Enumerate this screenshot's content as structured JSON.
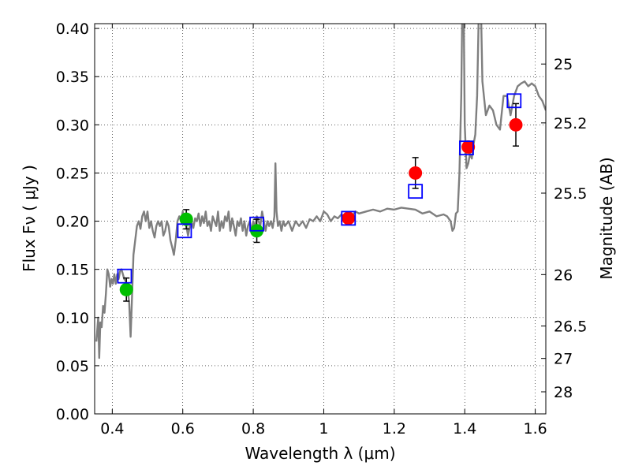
{
  "chart_data": {
    "type": "scatter",
    "xlabel": "Wavelength  λ (μm)",
    "ylabel": "Flux  Fν  ( μJy )",
    "y2label": "Magnitude (AB)",
    "xlim": [
      0.35,
      1.63
    ],
    "ylim": [
      0.0,
      0.405
    ],
    "grid": "on (dotted)",
    "x_ticks": [
      {
        "value": 0.4,
        "label": "0.4"
      },
      {
        "value": 0.6,
        "label": "0.6"
      },
      {
        "value": 0.8,
        "label": "0.8"
      },
      {
        "value": 1.0,
        "label": "1"
      },
      {
        "value": 1.2,
        "label": "1.2"
      },
      {
        "value": 1.4,
        "label": "1.4"
      },
      {
        "value": 1.6,
        "label": "1.6"
      }
    ],
    "y_ticks": [
      {
        "value": 0.0,
        "label": "0.00"
      },
      {
        "value": 0.05,
        "label": "0.05"
      },
      {
        "value": 0.1,
        "label": "0.10"
      },
      {
        "value": 0.15,
        "label": "0.15"
      },
      {
        "value": 0.2,
        "label": "0.20"
      },
      {
        "value": 0.25,
        "label": "0.25"
      },
      {
        "value": 0.3,
        "label": "0.30"
      },
      {
        "value": 0.35,
        "label": "0.35"
      },
      {
        "value": 0.4,
        "label": "0.40"
      }
    ],
    "y2_ticks": [
      {
        "value": 25,
        "label": "25"
      },
      {
        "value": 25.2,
        "label": "25.2"
      },
      {
        "value": 25.5,
        "label": "25.5"
      },
      {
        "value": 26,
        "label": "26"
      },
      {
        "value": 26.5,
        "label": "26.5"
      },
      {
        "value": 27,
        "label": "27"
      },
      {
        "value": 28,
        "label": "28"
      }
    ],
    "series": [
      {
        "kind": "model-spectrum",
        "color": "#7f7f7f",
        "points": [
          [
            0.355,
            0.075
          ],
          [
            0.36,
            0.1
          ],
          [
            0.363,
            0.058
          ],
          [
            0.366,
            0.095
          ],
          [
            0.37,
            0.09
          ],
          [
            0.374,
            0.112
          ],
          [
            0.378,
            0.105
          ],
          [
            0.382,
            0.125
          ],
          [
            0.386,
            0.15
          ],
          [
            0.39,
            0.145
          ],
          [
            0.394,
            0.132
          ],
          [
            0.398,
            0.14
          ],
          [
            0.402,
            0.135
          ],
          [
            0.406,
            0.145
          ],
          [
            0.41,
            0.135
          ],
          [
            0.414,
            0.145
          ],
          [
            0.418,
            0.14
          ],
          [
            0.422,
            0.148
          ],
          [
            0.426,
            0.15
          ],
          [
            0.43,
            0.145
          ],
          [
            0.434,
            0.14
          ],
          [
            0.438,
            0.138
          ],
          [
            0.442,
            0.132
          ],
          [
            0.445,
            0.125
          ],
          [
            0.448,
            0.115
          ],
          [
            0.452,
            0.08
          ],
          [
            0.455,
            0.11
          ],
          [
            0.46,
            0.165
          ],
          [
            0.465,
            0.18
          ],
          [
            0.47,
            0.195
          ],
          [
            0.475,
            0.2
          ],
          [
            0.48,
            0.192
          ],
          [
            0.485,
            0.205
          ],
          [
            0.49,
            0.21
          ],
          [
            0.495,
            0.2
          ],
          [
            0.5,
            0.21
          ],
          [
            0.505,
            0.193
          ],
          [
            0.51,
            0.2
          ],
          [
            0.515,
            0.19
          ],
          [
            0.52,
            0.183
          ],
          [
            0.525,
            0.195
          ],
          [
            0.53,
            0.2
          ],
          [
            0.535,
            0.195
          ],
          [
            0.54,
            0.2
          ],
          [
            0.545,
            0.185
          ],
          [
            0.55,
            0.19
          ],
          [
            0.555,
            0.2
          ],
          [
            0.56,
            0.195
          ],
          [
            0.565,
            0.18
          ],
          [
            0.57,
            0.173
          ],
          [
            0.575,
            0.165
          ],
          [
            0.58,
            0.18
          ],
          [
            0.585,
            0.2
          ],
          [
            0.59,
            0.205
          ],
          [
            0.595,
            0.2
          ],
          [
            0.6,
            0.21
          ],
          [
            0.605,
            0.2
          ],
          [
            0.61,
            0.195
          ],
          [
            0.615,
            0.185
          ],
          [
            0.62,
            0.195
          ],
          [
            0.625,
            0.2
          ],
          [
            0.63,
            0.193
          ],
          [
            0.635,
            0.203
          ],
          [
            0.64,
            0.2
          ],
          [
            0.645,
            0.208
          ],
          [
            0.65,
            0.195
          ],
          [
            0.655,
            0.205
          ],
          [
            0.66,
            0.198
          ],
          [
            0.665,
            0.21
          ],
          [
            0.67,
            0.195
          ],
          [
            0.675,
            0.2
          ],
          [
            0.68,
            0.19
          ],
          [
            0.685,
            0.205
          ],
          [
            0.69,
            0.2
          ],
          [
            0.695,
            0.195
          ],
          [
            0.7,
            0.21
          ],
          [
            0.705,
            0.19
          ],
          [
            0.71,
            0.2
          ],
          [
            0.715,
            0.193
          ],
          [
            0.72,
            0.205
          ],
          [
            0.725,
            0.2
          ],
          [
            0.73,
            0.21
          ],
          [
            0.735,
            0.19
          ],
          [
            0.74,
            0.203
          ],
          [
            0.745,
            0.195
          ],
          [
            0.75,
            0.185
          ],
          [
            0.755,
            0.2
          ],
          [
            0.76,
            0.195
          ],
          [
            0.765,
            0.203
          ],
          [
            0.77,
            0.19
          ],
          [
            0.775,
            0.2
          ],
          [
            0.78,
            0.185
          ],
          [
            0.785,
            0.195
          ],
          [
            0.79,
            0.2
          ],
          [
            0.795,
            0.19
          ],
          [
            0.8,
            0.2
          ],
          [
            0.805,
            0.193
          ],
          [
            0.81,
            0.205
          ],
          [
            0.815,
            0.2
          ],
          [
            0.82,
            0.195
          ],
          [
            0.825,
            0.21
          ],
          [
            0.83,
            0.2
          ],
          [
            0.835,
            0.19
          ],
          [
            0.84,
            0.2
          ],
          [
            0.845,
            0.195
          ],
          [
            0.85,
            0.2
          ],
          [
            0.855,
            0.193
          ],
          [
            0.86,
            0.205
          ],
          [
            0.863,
            0.26
          ],
          [
            0.866,
            0.21
          ],
          [
            0.87,
            0.195
          ],
          [
            0.875,
            0.2
          ],
          [
            0.88,
            0.19
          ],
          [
            0.885,
            0.2
          ],
          [
            0.89,
            0.195
          ],
          [
            0.9,
            0.2
          ],
          [
            0.91,
            0.19
          ],
          [
            0.92,
            0.2
          ],
          [
            0.93,
            0.195
          ],
          [
            0.94,
            0.2
          ],
          [
            0.95,
            0.193
          ],
          [
            0.96,
            0.202
          ],
          [
            0.97,
            0.2
          ],
          [
            0.98,
            0.205
          ],
          [
            0.99,
            0.2
          ],
          [
            1.0,
            0.21
          ],
          [
            1.01,
            0.207
          ],
          [
            1.02,
            0.2
          ],
          [
            1.03,
            0.205
          ],
          [
            1.04,
            0.203
          ],
          [
            1.05,
            0.207
          ],
          [
            1.06,
            0.205
          ],
          [
            1.07,
            0.207
          ],
          [
            1.08,
            0.205
          ],
          [
            1.09,
            0.21
          ],
          [
            1.1,
            0.208
          ],
          [
            1.12,
            0.21
          ],
          [
            1.14,
            0.212
          ],
          [
            1.16,
            0.21
          ],
          [
            1.18,
            0.213
          ],
          [
            1.2,
            0.212
          ],
          [
            1.22,
            0.214
          ],
          [
            1.24,
            0.213
          ],
          [
            1.26,
            0.212
          ],
          [
            1.28,
            0.208
          ],
          [
            1.3,
            0.21
          ],
          [
            1.32,
            0.205
          ],
          [
            1.34,
            0.207
          ],
          [
            1.35,
            0.205
          ],
          [
            1.36,
            0.2
          ],
          [
            1.365,
            0.19
          ],
          [
            1.37,
            0.193
          ],
          [
            1.375,
            0.208
          ],
          [
            1.38,
            0.21
          ],
          [
            1.385,
            0.25
          ],
          [
            1.39,
            0.33
          ],
          [
            1.393,
            0.42
          ],
          [
            1.397,
            0.42
          ],
          [
            1.4,
            0.3
          ],
          [
            1.405,
            0.255
          ],
          [
            1.41,
            0.26
          ],
          [
            1.415,
            0.27
          ],
          [
            1.42,
            0.265
          ],
          [
            1.425,
            0.28
          ],
          [
            1.43,
            0.29
          ],
          [
            1.435,
            0.33
          ],
          [
            1.44,
            0.42
          ],
          [
            1.446,
            0.42
          ],
          [
            1.45,
            0.345
          ],
          [
            1.46,
            0.31
          ],
          [
            1.47,
            0.32
          ],
          [
            1.48,
            0.315
          ],
          [
            1.49,
            0.3
          ],
          [
            1.5,
            0.295
          ],
          [
            1.51,
            0.33
          ],
          [
            1.52,
            0.33
          ],
          [
            1.53,
            0.31
          ],
          [
            1.54,
            0.33
          ],
          [
            1.55,
            0.34
          ],
          [
            1.56,
            0.343
          ],
          [
            1.57,
            0.345
          ],
          [
            1.58,
            0.34
          ],
          [
            1.59,
            0.343
          ],
          [
            1.6,
            0.34
          ],
          [
            1.61,
            0.33
          ],
          [
            1.62,
            0.325
          ],
          [
            1.63,
            0.315
          ]
        ]
      },
      {
        "kind": "observed-ground",
        "color": "#00bf00",
        "points": [
          {
            "x": 0.44,
            "y": 0.129,
            "err": 0.012
          },
          {
            "x": 0.61,
            "y": 0.202,
            "err": 0.01
          },
          {
            "x": 0.81,
            "y": 0.19,
            "err": 0.012
          }
        ]
      },
      {
        "kind": "observed-space",
        "color": "#ff0000",
        "points": [
          {
            "x": 1.07,
            "y": 0.203,
            "err": 0.0
          },
          {
            "x": 1.26,
            "y": 0.25,
            "err": 0.016
          },
          {
            "x": 1.41,
            "y": 0.277,
            "err": 0.0
          },
          {
            "x": 1.545,
            "y": 0.3,
            "err": 0.022
          }
        ]
      },
      {
        "kind": "model-bandpass",
        "color": "#0000ff",
        "points": [
          {
            "x": 0.435,
            "y": 0.143
          },
          {
            "x": 0.605,
            "y": 0.19
          },
          {
            "x": 0.81,
            "y": 0.197
          },
          {
            "x": 1.07,
            "y": 0.203
          },
          {
            "x": 1.26,
            "y": 0.231
          },
          {
            "x": 1.405,
            "y": 0.276
          },
          {
            "x": 1.54,
            "y": 0.325
          }
        ]
      }
    ]
  }
}
